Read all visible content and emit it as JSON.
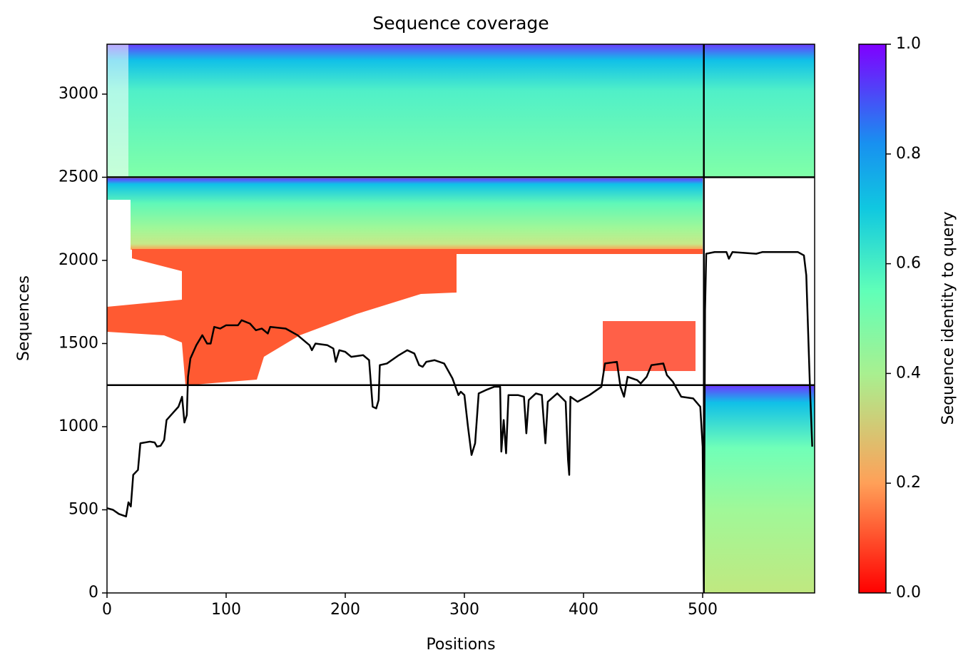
{
  "chart_data": {
    "type": "line",
    "title": "Sequence coverage",
    "x_label": "Positions",
    "y_label": "Sequences",
    "colorbar_label": "Sequence identity to query",
    "color": "#000000",
    "x": [
      0,
      5,
      10,
      16,
      18,
      20,
      22,
      26,
      28,
      36,
      40,
      42,
      45,
      48,
      50,
      55,
      60,
      63,
      65,
      67,
      68,
      70,
      75,
      80,
      84,
      87,
      90,
      95,
      100,
      110,
      113,
      120,
      125,
      130,
      135,
      137,
      150,
      160,
      165,
      170,
      172,
      175,
      185,
      190,
      192,
      195,
      200,
      205,
      215,
      220,
      223,
      226,
      228,
      229,
      235,
      245,
      252,
      258,
      262,
      265,
      268,
      275,
      283,
      290,
      295,
      297,
      300,
      303,
      306,
      309,
      312,
      318,
      325,
      330,
      331,
      333,
      335,
      337,
      345,
      350,
      352,
      354,
      360,
      365,
      368,
      370,
      378,
      385,
      387,
      388,
      389,
      395,
      405,
      415,
      418,
      428,
      431,
      434,
      437,
      445,
      448,
      453,
      457,
      467,
      470,
      475,
      482,
      492,
      498,
      500,
      501,
      502,
      503,
      510,
      520,
      522,
      525,
      545,
      550,
      580,
      585,
      587,
      590,
      592
    ],
    "values": [
      510,
      500,
      475,
      460,
      545,
      520,
      710,
      740,
      900,
      910,
      905,
      880,
      885,
      920,
      1040,
      1080,
      1120,
      1180,
      1025,
      1070,
      1300,
      1410,
      1490,
      1550,
      1500,
      1500,
      1600,
      1590,
      1610,
      1610,
      1640,
      1620,
      1580,
      1590,
      1560,
      1600,
      1590,
      1550,
      1520,
      1490,
      1460,
      1500,
      1490,
      1470,
      1390,
      1460,
      1450,
      1420,
      1430,
      1400,
      1120,
      1110,
      1160,
      1370,
      1380,
      1430,
      1460,
      1440,
      1370,
      1360,
      1390,
      1400,
      1380,
      1290,
      1190,
      1210,
      1190,
      1000,
      830,
      900,
      1200,
      1220,
      1240,
      1240,
      850,
      1040,
      840,
      1190,
      1190,
      1180,
      960,
      1160,
      1200,
      1190,
      900,
      1150,
      1200,
      1150,
      800,
      710,
      1180,
      1150,
      1190,
      1240,
      1380,
      1390,
      1240,
      1180,
      1300,
      1280,
      1260,
      1300,
      1370,
      1380,
      1310,
      1270,
      1180,
      1170,
      1120,
      880,
      20,
      1700,
      2040,
      2050,
      2050,
      2010,
      2050,
      2040,
      2050,
      2050,
      2030,
      1910,
      1250,
      880
    ],
    "separators_y": [
      2500,
      1250
    ],
    "separators_x": [
      501
    ],
    "xlim": [
      0,
      594
    ],
    "ylim": [
      0,
      3300
    ],
    "xticks": [
      0,
      100,
      200,
      300,
      400,
      500
    ],
    "yticks": [
      0,
      500,
      1000,
      1500,
      2000,
      2500,
      3000
    ],
    "clim": [
      0,
      1
    ],
    "cticks": [
      {
        "value": 0,
        "label": "0.0"
      },
      {
        "value": 0.2,
        "label": "0.2"
      },
      {
        "value": 0.4,
        "label": "0.4"
      },
      {
        "value": 0.6,
        "label": "0.6"
      },
      {
        "value": 0.8,
        "label": "0.8"
      },
      {
        "value": 1,
        "label": "1.0"
      }
    ]
  }
}
